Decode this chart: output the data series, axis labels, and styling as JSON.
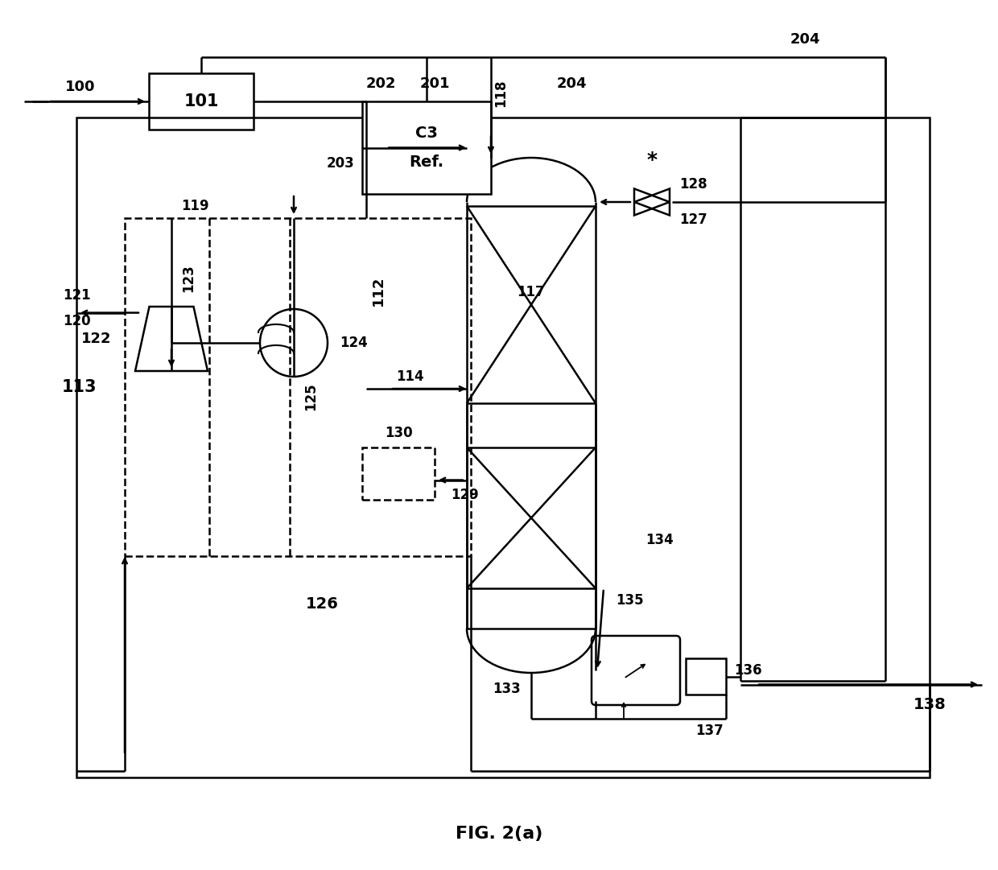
{
  "bg": "#ffffff",
  "lc": "#000000",
  "lw": 1.8,
  "title": "FIG. 2(a)",
  "fw": 12.4,
  "fh": 10.81,
  "fs_label": 13,
  "fs_num": 12
}
